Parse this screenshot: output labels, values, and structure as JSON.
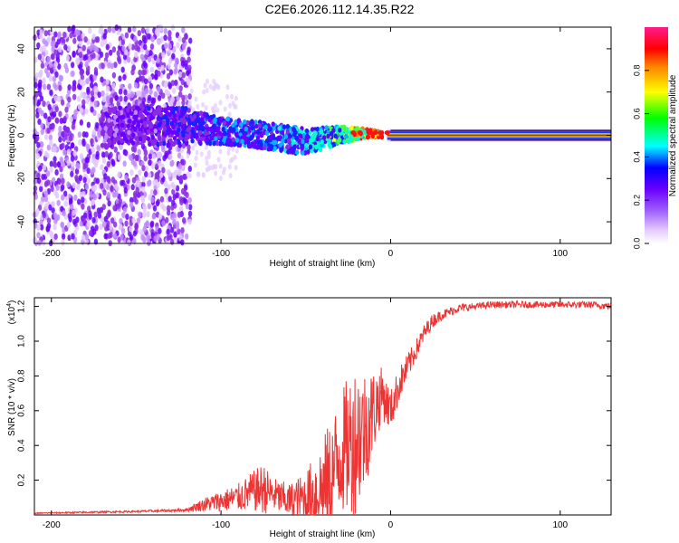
{
  "title": "C2E6.2026.112.14.35.R22",
  "chart_data": [
    {
      "type": "heatmap",
      "panel": "top",
      "xlabel": "Height of straight line (km)",
      "ylabel": "Frequency (Hz)",
      "xlim": [
        -210,
        130
      ],
      "ylim": [
        -50,
        50
      ],
      "xticks": [
        -200,
        -100,
        0,
        100
      ],
      "yticks": [
        -40,
        -20,
        0,
        20,
        40
      ],
      "grid": false,
      "colorbar": {
        "label": "Normalized spectral amplitude",
        "range": [
          0,
          1
        ],
        "ticks": [
          0.0,
          0.2,
          0.4,
          0.6,
          0.8
        ],
        "colors": [
          "#ffffff",
          "#d9b3ff",
          "#8a2be2",
          "#2020ff",
          "#00ffff",
          "#00ff00",
          "#ffff00",
          "#ff8000",
          "#ff0000",
          "#ff0080"
        ]
      },
      "description_points": [
        {
          "x": -200,
          "f_center": 0,
          "f_spread": 50,
          "amplitude": 0.2
        },
        {
          "x": -150,
          "f_center": 5,
          "f_spread": 50,
          "amplitude": 0.3
        },
        {
          "x": -120,
          "f_center": 4,
          "f_spread": 8,
          "amplitude": 0.35
        },
        {
          "x": -100,
          "f_center": 2,
          "f_spread": 6,
          "amplitude": 0.4
        },
        {
          "x": -75,
          "f_center": 0,
          "f_spread": 6,
          "amplitude": 0.42
        },
        {
          "x": -50,
          "f_center": -3,
          "f_spread": 6,
          "amplitude": 0.45
        },
        {
          "x": -30,
          "f_center": 0,
          "f_spread": 4,
          "amplitude": 0.6
        },
        {
          "x": -15,
          "f_center": 1,
          "f_spread": 2,
          "amplitude": 0.85
        },
        {
          "x": 0,
          "f_center": 0,
          "f_spread": 1,
          "amplitude": 0.95
        },
        {
          "x": 60,
          "f_center": 0,
          "f_spread": 1,
          "amplitude": 0.95
        },
        {
          "x": 130,
          "f_center": 0,
          "f_spread": 1,
          "amplitude": 0.95
        }
      ]
    },
    {
      "type": "line",
      "panel": "bottom",
      "xlabel": "Height of straight line (km)",
      "ylabel": "SNR (10 * v/v)",
      "y_multiplier": "(x10",
      "y_multiplier_exp": "4",
      "y_multiplier_close": ")",
      "xlim": [
        -210,
        130
      ],
      "ylim": [
        0,
        1.25
      ],
      "xticks": [
        -200,
        -100,
        0,
        100
      ],
      "yticks": [
        0.2,
        0.4,
        0.6,
        0.8,
        1.0,
        1.2
      ],
      "grid": false,
      "series": [
        {
          "name": "SNR",
          "color": "#ee3333",
          "x": [
            -210,
            -180,
            -150,
            -130,
            -120,
            -110,
            -100,
            -90,
            -80,
            -75,
            -70,
            -60,
            -50,
            -40,
            -35,
            -30,
            -25,
            -20,
            -15,
            -10,
            -5,
            0,
            5,
            10,
            15,
            20,
            25,
            30,
            40,
            50,
            60,
            80,
            100,
            120,
            130
          ],
          "y": [
            0.01,
            0.015,
            0.02,
            0.025,
            0.03,
            0.06,
            0.08,
            0.1,
            0.14,
            0.15,
            0.12,
            0.08,
            0.1,
            0.15,
            0.2,
            0.35,
            0.4,
            0.45,
            0.5,
            0.6,
            0.7,
            0.6,
            0.75,
            0.85,
            0.95,
            1.05,
            1.12,
            1.15,
            1.19,
            1.2,
            1.21,
            1.21,
            1.21,
            1.21,
            1.2
          ],
          "spread": [
            0.003,
            0.005,
            0.006,
            0.008,
            0.01,
            0.04,
            0.06,
            0.08,
            0.12,
            0.15,
            0.1,
            0.1,
            0.15,
            0.3,
            0.35,
            0.35,
            0.4,
            0.45,
            0.35,
            0.25,
            0.15,
            0.12,
            0.1,
            0.08,
            0.06,
            0.05,
            0.04,
            0.03,
            0.025,
            0.02,
            0.02,
            0.02,
            0.02,
            0.02,
            0.02
          ]
        }
      ]
    }
  ]
}
